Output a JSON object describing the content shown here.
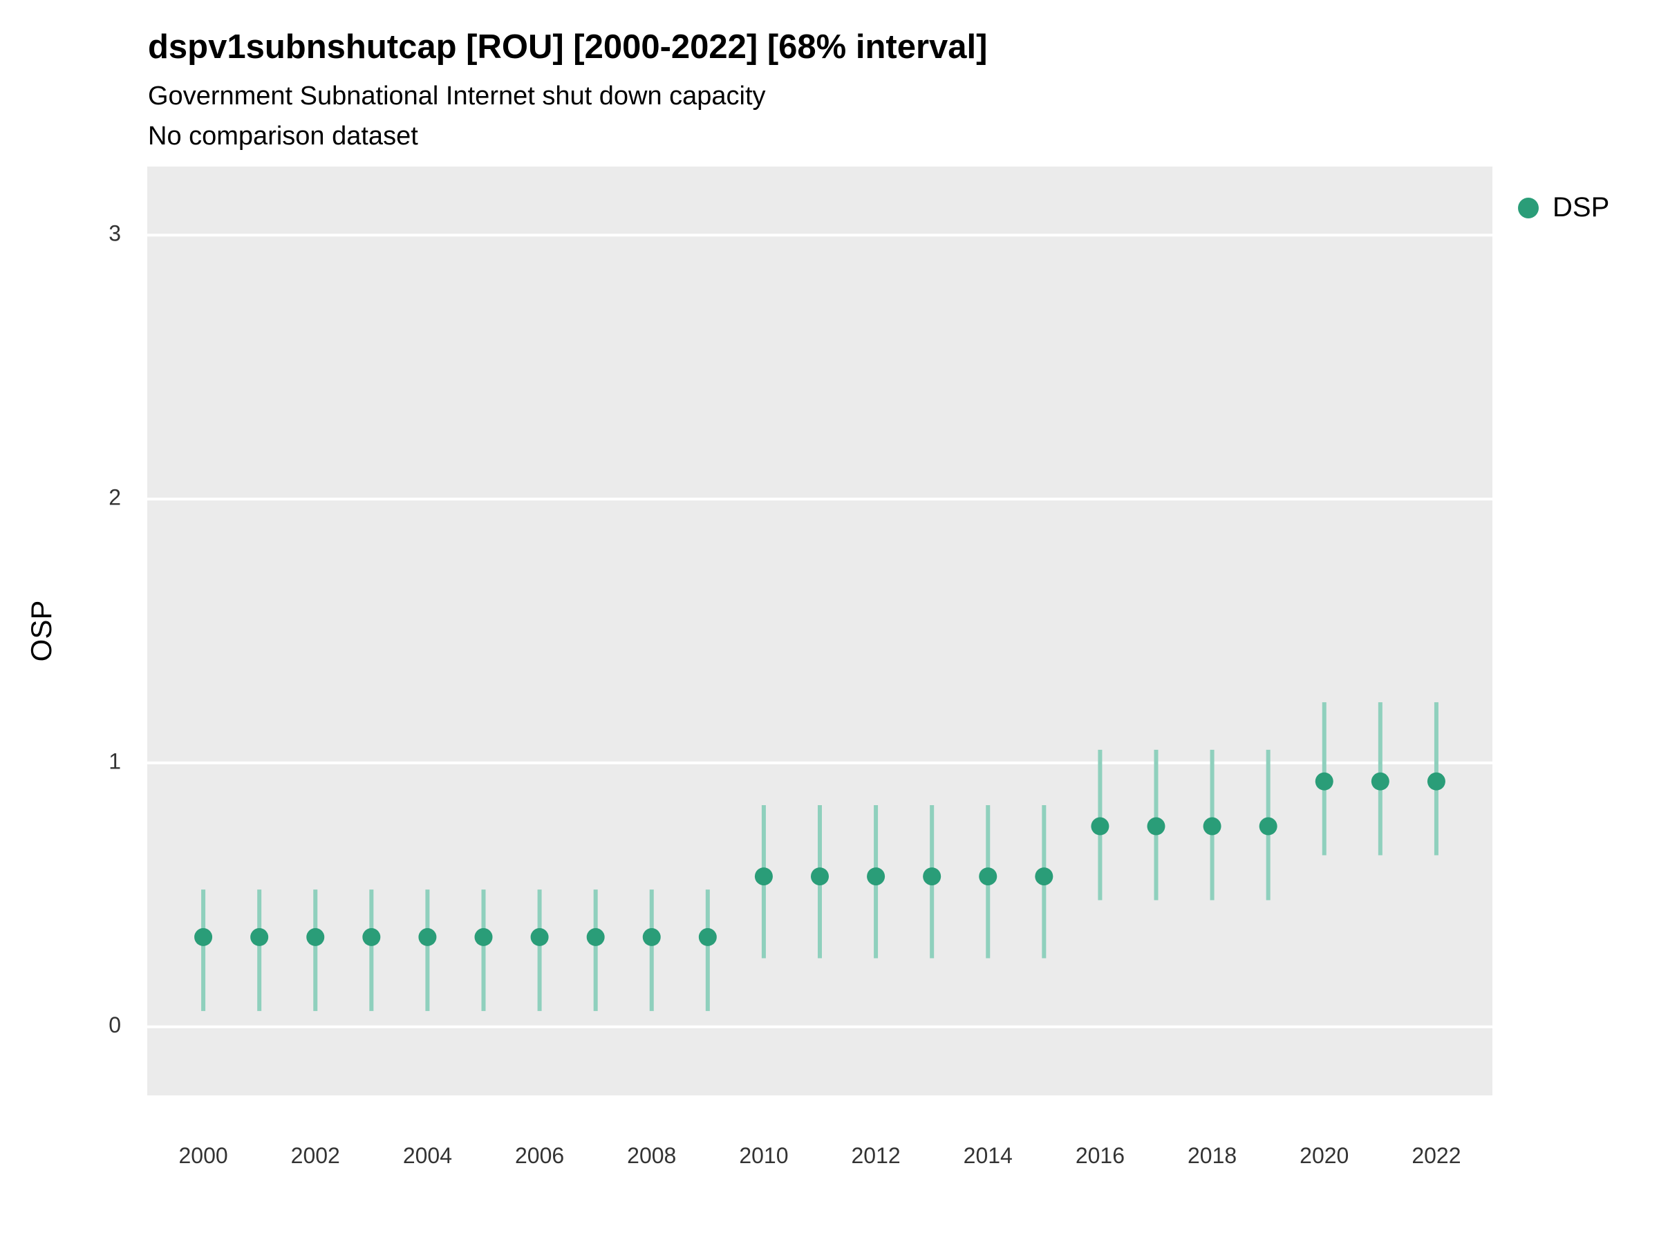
{
  "header": {
    "title": "dspv1subnshutcap [ROU] [2000-2022] [68% interval]",
    "subtitle": "Government Subnational Internet shut down capacity",
    "note": "No comparison dataset"
  },
  "y_axis": {
    "label": "OSP"
  },
  "legend": {
    "items": [
      {
        "label": "DSP",
        "color": "#2a9d78"
      }
    ]
  },
  "chart_data": {
    "type": "scatter",
    "title": "dspv1subnshutcap [ROU] [2000-2022] [68% interval]",
    "subtitle": "Government Subnational Internet shut down capacity",
    "note": "No comparison dataset",
    "xlabel": "",
    "ylabel": "OSP",
    "interval_level": "68%",
    "x_range": [
      1999,
      2023
    ],
    "ylim": [
      -0.26,
      3.26
    ],
    "yticks": [
      0,
      1,
      2,
      3
    ],
    "xticks": [
      2000,
      2002,
      2004,
      2006,
      2008,
      2010,
      2012,
      2014,
      2016,
      2018,
      2020,
      2022
    ],
    "grid": "major-horizontal",
    "legend_position": "right-top",
    "plot_background": "#EBEBEB",
    "gridline_color": "#FFFFFF",
    "point_color": "#2a9d78",
    "interval_color": "#8fd0bd",
    "tick_label_color": "#333333",
    "series": [
      {
        "name": "DSP",
        "x": [
          2000,
          2001,
          2002,
          2003,
          2004,
          2005,
          2006,
          2007,
          2008,
          2009,
          2010,
          2011,
          2012,
          2013,
          2014,
          2015,
          2016,
          2017,
          2018,
          2019,
          2020,
          2021,
          2022
        ],
        "y": [
          0.34,
          0.34,
          0.34,
          0.34,
          0.34,
          0.34,
          0.34,
          0.34,
          0.34,
          0.34,
          0.57,
          0.57,
          0.57,
          0.57,
          0.57,
          0.57,
          0.76,
          0.76,
          0.76,
          0.76,
          0.93,
          0.93,
          0.93
        ],
        "lower": [
          0.06,
          0.06,
          0.06,
          0.06,
          0.06,
          0.06,
          0.06,
          0.06,
          0.06,
          0.06,
          0.26,
          0.26,
          0.26,
          0.26,
          0.26,
          0.26,
          0.48,
          0.48,
          0.48,
          0.48,
          0.65,
          0.65,
          0.65
        ],
        "upper": [
          0.52,
          0.52,
          0.52,
          0.52,
          0.52,
          0.52,
          0.52,
          0.52,
          0.52,
          0.52,
          0.84,
          0.84,
          0.84,
          0.84,
          0.84,
          0.84,
          1.05,
          1.05,
          1.05,
          1.05,
          1.23,
          1.23,
          1.23
        ]
      }
    ]
  }
}
